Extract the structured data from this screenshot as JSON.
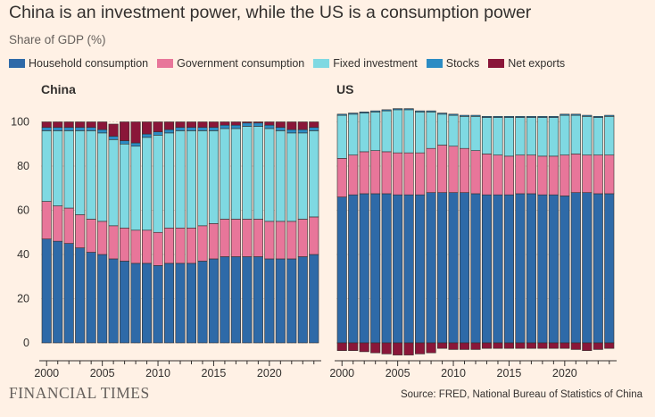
{
  "title": "China is an investment power, while the US is a consumption power",
  "subtitle": "Share of GDP (%)",
  "legend": [
    {
      "label": "Household consumption",
      "color": "#2e6aa8"
    },
    {
      "label": "Government consumption",
      "color": "#e8769a"
    },
    {
      "label": "Fixed investment",
      "color": "#7fd9e2"
    },
    {
      "label": "Stocks",
      "color": "#2b8cc4"
    },
    {
      "label": "Net exports",
      "color": "#8a1639"
    }
  ],
  "footer": {
    "brand": "FINANCIAL TIMES",
    "source": "Source: FRED, National Bureau of Statistics of China"
  },
  "chart_data": [
    {
      "type": "bar",
      "stacked": true,
      "title": "China",
      "ylim": [
        -5,
        105
      ],
      "yticks": [
        0,
        20,
        40,
        60,
        80,
        100
      ],
      "xticks": [
        "2000",
        "2005",
        "2010",
        "2015",
        "2020"
      ],
      "categories": [
        "2000",
        "2001",
        "2002",
        "2003",
        "2004",
        "2005",
        "2006",
        "2007",
        "2008",
        "2009",
        "2010",
        "2011",
        "2012",
        "2013",
        "2014",
        "2015",
        "2016",
        "2017",
        "2018",
        "2019",
        "2020",
        "2021",
        "2022",
        "2023",
        "2024"
      ],
      "series": [
        {
          "name": "Household consumption",
          "values": [
            47,
            46,
            45,
            43,
            41,
            40,
            38,
            37,
            36,
            36,
            35,
            36,
            36,
            36,
            37,
            38,
            39,
            39,
            39,
            39,
            38,
            38,
            38,
            39,
            40
          ]
        },
        {
          "name": "Government consumption",
          "values": [
            17,
            16,
            16,
            15,
            15,
            15,
            15,
            15,
            15,
            15,
            15,
            16,
            16,
            16,
            16,
            16,
            17,
            17,
            17,
            17,
            17,
            17,
            17,
            17,
            17
          ]
        },
        {
          "name": "Fixed investment",
          "values": [
            32,
            34,
            35,
            38,
            40,
            40,
            39,
            38,
            38,
            42,
            44,
            43,
            44,
            44,
            43,
            42,
            41,
            41,
            42,
            42,
            42,
            41,
            40,
            39,
            39
          ]
        },
        {
          "name": "Stocks",
          "values": [
            1.5,
            1.5,
            1.5,
            1.5,
            1.5,
            1.5,
            1.5,
            1.5,
            1.5,
            1.5,
            1.5,
            1.5,
            1.5,
            1.5,
            1.5,
            1.5,
            1.5,
            1.5,
            1.5,
            1.5,
            1.5,
            1.5,
            1.5,
            1.5,
            1.5
          ]
        },
        {
          "name": "Net exports",
          "values": [
            2.5,
            2.5,
            2.5,
            2.5,
            2.5,
            3.5,
            5.5,
            8.5,
            9.5,
            5.5,
            4.5,
            3.5,
            2.5,
            2.5,
            2.5,
            2.5,
            1.5,
            1.5,
            0.5,
            0.5,
            1.5,
            2.5,
            3.5,
            3.5,
            2.5
          ]
        }
      ]
    },
    {
      "type": "bar",
      "stacked": true,
      "title": "US",
      "ylim": [
        -5,
        105
      ],
      "xticks": [
        "2000",
        "2005",
        "2010",
        "2015",
        "2020"
      ],
      "categories": [
        "2000",
        "2001",
        "2002",
        "2003",
        "2004",
        "2005",
        "2006",
        "2007",
        "2008",
        "2009",
        "2010",
        "2011",
        "2012",
        "2013",
        "2014",
        "2015",
        "2016",
        "2017",
        "2018",
        "2019",
        "2020",
        "2021",
        "2022",
        "2023",
        "2024"
      ],
      "series": [
        {
          "name": "Household consumption",
          "values": [
            66,
            67,
            67.5,
            67.5,
            67.5,
            67,
            67,
            67,
            68,
            68,
            68,
            68,
            67.5,
            67,
            67,
            67,
            67.5,
            67.5,
            67,
            67,
            66.5,
            68,
            68,
            67.5,
            67.5
          ]
        },
        {
          "name": "Government consumption",
          "values": [
            17.5,
            18,
            19,
            19.5,
            19,
            19,
            19,
            19,
            20,
            21.5,
            21,
            20,
            19.5,
            18.5,
            18,
            17.5,
            17.5,
            17.5,
            17.5,
            17.5,
            18.5,
            17.5,
            17,
            17.5,
            17.5
          ]
        },
        {
          "name": "Fixed investment",
          "values": [
            19.5,
            18.5,
            17.5,
            17.5,
            18.5,
            19.5,
            19.5,
            18.5,
            16.5,
            14,
            14,
            14.5,
            15.5,
            16.5,
            17,
            17.5,
            17,
            17,
            17.5,
            17.5,
            18,
            17.5,
            17.5,
            17,
            17.5
          ]
        },
        {
          "name": "Stocks",
          "values": [
            0.5,
            0.5,
            0.5,
            0.5,
            0.5,
            0.5,
            0.5,
            0.5,
            0.5,
            0.5,
            0.5,
            0.5,
            0.5,
            0.5,
            0.5,
            0.5,
            0.5,
            0.5,
            0.5,
            0.5,
            0.5,
            0.5,
            0.5,
            0.5,
            0.5
          ]
        },
        {
          "name": "Net exports",
          "values": [
            -3.5,
            -3.5,
            -4,
            -4.5,
            -5,
            -5.5,
            -5.5,
            -5,
            -4.5,
            -2.5,
            -3,
            -3,
            -3,
            -2.5,
            -2.5,
            -2.5,
            -2.5,
            -2.5,
            -2.5,
            -2.5,
            -2.5,
            -3,
            -3.5,
            -3,
            -2.5
          ]
        }
      ]
    }
  ]
}
